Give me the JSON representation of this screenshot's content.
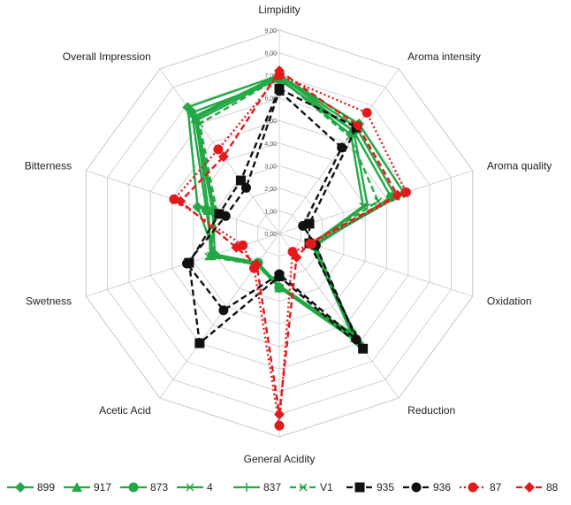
{
  "chart_data": {
    "type": "radar",
    "axes": [
      "Limpidity",
      "Aroma intensity",
      "Aroma quality",
      "Oxidation",
      "Reduction",
      "General Acidity",
      "Acetic Acid",
      "Swetness",
      "Bitterness",
      "Overall Impression"
    ],
    "rlim": [
      0,
      9
    ],
    "ticks": [
      "0,00",
      "1,00",
      "2,00",
      "3,00",
      "4,00",
      "5,00",
      "6,00",
      "7,00",
      "8,00",
      "9,00"
    ],
    "grid": true,
    "legend_position": "bottom",
    "series": [
      {
        "name": "899",
        "color": "#22a845",
        "line": "solid",
        "marker": "diamond",
        "values": [
          7.0,
          6.0,
          5.8,
          1.6,
          6.0,
          2.4,
          1.6,
          3.0,
          3.8,
          6.9
        ]
      },
      {
        "name": "917",
        "color": "#22a845",
        "line": "solid",
        "marker": "triangle",
        "values": [
          7.0,
          5.8,
          5.4,
          1.6,
          5.7,
          2.4,
          1.7,
          3.2,
          3.3,
          6.3
        ]
      },
      {
        "name": "873",
        "color": "#22a845",
        "line": "solid",
        "marker": "circle",
        "values": [
          6.8,
          5.6,
          5.2,
          1.7,
          5.5,
          2.4,
          1.6,
          3.1,
          3.4,
          6.6
        ]
      },
      {
        "name": "4",
        "color": "#22a845",
        "line": "solid",
        "marker": "x",
        "values": [
          6.9,
          5.4,
          3.9,
          1.5,
          5.4,
          2.4,
          1.6,
          3.2,
          3.0,
          6.2
        ]
      },
      {
        "name": "837",
        "color": "#22a845",
        "line": "solid",
        "marker": "plus",
        "values": [
          7.0,
          5.6,
          4.1,
          1.5,
          5.6,
          2.3,
          1.6,
          3.0,
          3.1,
          6.4
        ]
      },
      {
        "name": "V1",
        "color": "#22a845",
        "line": "dashed",
        "marker": "x",
        "values": [
          6.9,
          5.3,
          4.6,
          1.5,
          5.5,
          2.4,
          1.7,
          3.3,
          2.9,
          6.0
        ]
      },
      {
        "name": "935",
        "color": "#111111",
        "line": "dashed",
        "marker": "square",
        "values": [
          6.4,
          5.8,
          1.4,
          1.4,
          6.3,
          1.9,
          6.0,
          4.2,
          2.8,
          2.9
        ]
      },
      {
        "name": "936",
        "color": "#111111",
        "line": "dashed",
        "marker": "circle",
        "values": [
          6.3,
          4.7,
          1.1,
          1.7,
          5.8,
          1.8,
          4.2,
          4.3,
          2.5,
          2.5
        ]
      },
      {
        "name": "87",
        "color": "#e31a1c",
        "line": "dotted",
        "marker": "circle",
        "values": [
          7.0,
          6.6,
          5.9,
          1.5,
          1.0,
          8.5,
          1.9,
          1.7,
          4.9,
          4.6
        ]
      },
      {
        "name": "88",
        "color": "#e31a1c",
        "line": "dashed",
        "marker": "diamond",
        "values": [
          7.2,
          5.9,
          5.5,
          1.4,
          1.3,
          8.0,
          1.7,
          2.0,
          4.6,
          4.2
        ]
      }
    ]
  }
}
